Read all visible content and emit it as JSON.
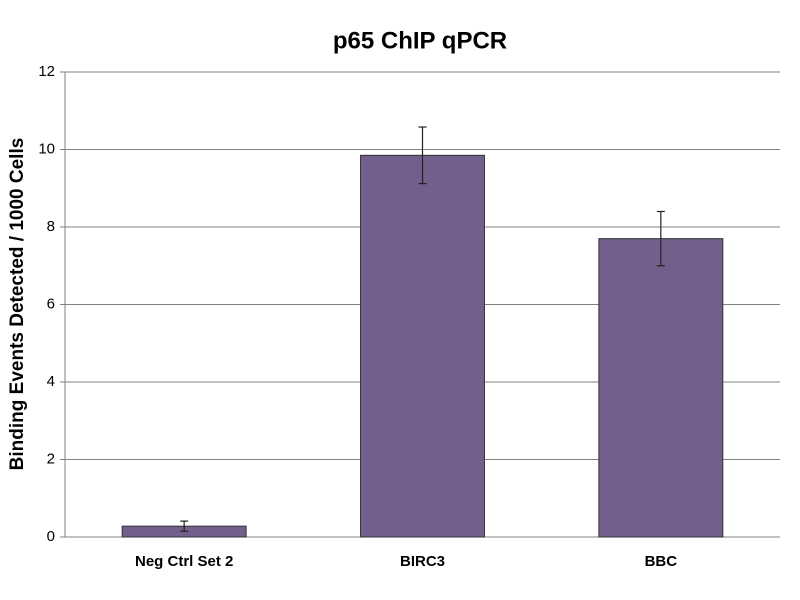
{
  "chart_data": {
    "type": "bar",
    "title": "p65 ChIP qPCR",
    "y_label": "Binding Events Detected / 1000 Cells",
    "categories": [
      "Neg Ctrl Set 2",
      "BIRC3",
      "BBC"
    ],
    "values": [
      0.28,
      9.85,
      7.7
    ],
    "errors": [
      0.13,
      0.73,
      0.7
    ],
    "color": "#735f8c",
    "ylim": [
      0,
      12
    ],
    "yticks": [
      0,
      2,
      4,
      6,
      8,
      10,
      12
    ],
    "grid": true
  }
}
